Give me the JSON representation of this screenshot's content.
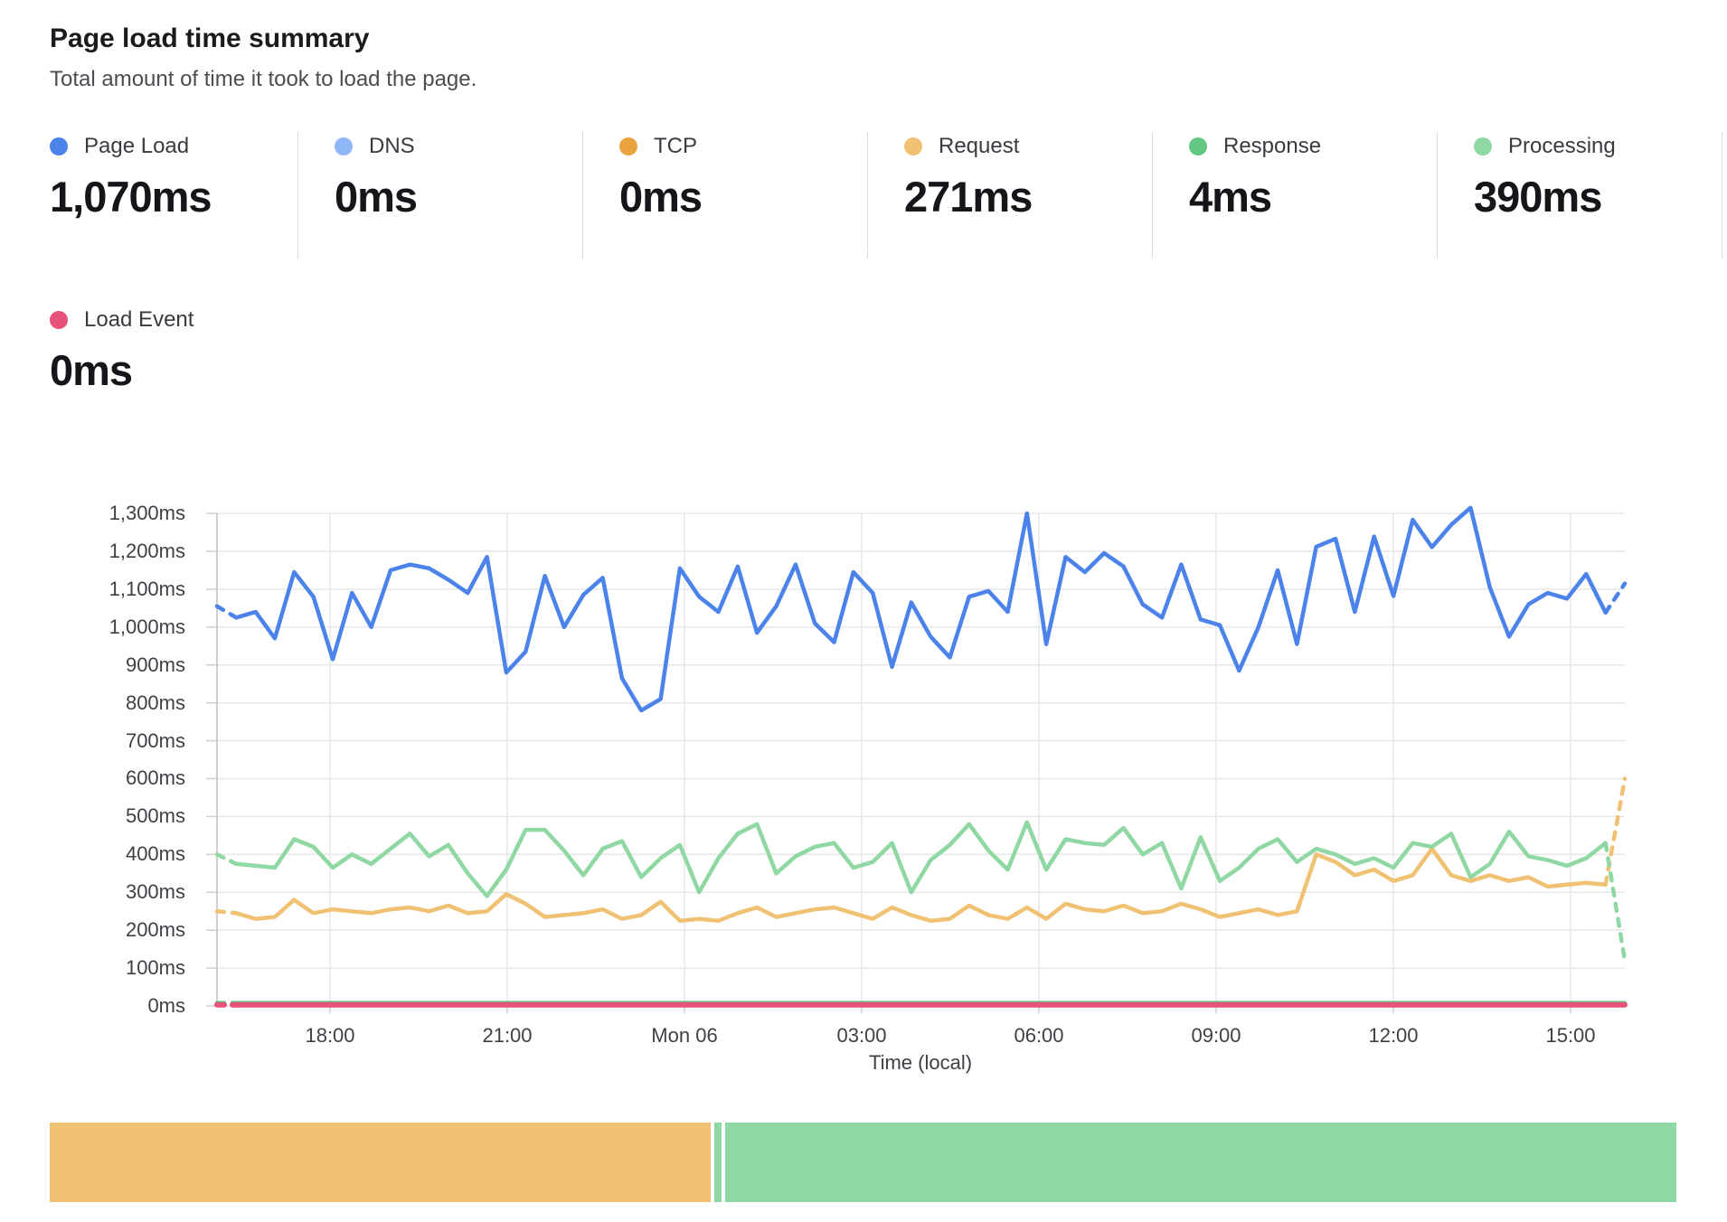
{
  "header": {
    "title": "Page load time summary",
    "subtitle": "Total amount of time it took to load the page."
  },
  "metrics": [
    {
      "label": "Page Load",
      "value": "1,070ms",
      "color": "#4b83ea"
    },
    {
      "label": "DNS",
      "value": "0ms",
      "color": "#8fb6f7"
    },
    {
      "label": "TCP",
      "value": "0ms",
      "color": "#eba33f"
    },
    {
      "label": "Request",
      "value": "271ms",
      "color": "#f1c173"
    },
    {
      "label": "Response",
      "value": "4ms",
      "color": "#63c784"
    },
    {
      "label": "Processing",
      "value": "390ms",
      "color": "#8fd7a3"
    }
  ],
  "load_event_metric": {
    "label": "Load Event",
    "value": "0ms",
    "color": "#e85179"
  },
  "chart_data": {
    "type": "line",
    "title": "Page load time summary",
    "xlabel": "Time (local)",
    "ylabel": "",
    "ylim": [
      0,
      1300
    ],
    "grid": true,
    "legend_position": "top-metrics",
    "x_ticks": [
      "18:00",
      "21:00",
      "Mon 06",
      "03:00",
      "06:00",
      "09:00",
      "12:00",
      "15:00"
    ],
    "y_ticks": [
      "0ms",
      "100ms",
      "200ms",
      "300ms",
      "400ms",
      "500ms",
      "600ms",
      "700ms",
      "800ms",
      "900ms",
      "1,000ms",
      "1,100ms",
      "1,200ms",
      "1,300ms"
    ],
    "x_range": "24 hours (≈16:00 to 16:00 next day), ticks every 3h",
    "series": [
      {
        "name": "Request",
        "color": "#f1c173",
        "dash_first": true,
        "dash_last": true,
        "values": [
          250,
          245,
          230,
          235,
          280,
          245,
          255,
          250,
          245,
          255,
          260,
          250,
          265,
          245,
          250,
          295,
          270,
          235,
          240,
          245,
          255,
          230,
          240,
          275,
          225,
          230,
          225,
          245,
          260,
          235,
          245,
          255,
          260,
          245,
          230,
          260,
          240,
          225,
          230,
          265,
          240,
          230,
          260,
          230,
          270,
          255,
          250,
          265,
          245,
          250,
          270,
          255,
          235,
          245,
          255,
          240,
          250,
          400,
          380,
          345,
          360,
          330,
          345,
          415,
          345,
          330,
          345,
          330,
          340,
          315,
          320,
          325,
          320,
          600
        ]
      },
      {
        "name": "Processing",
        "color": "#8fd7a3",
        "dash_first": true,
        "dash_last": true,
        "values": [
          400,
          375,
          370,
          365,
          440,
          420,
          365,
          400,
          375,
          415,
          455,
          395,
          425,
          350,
          290,
          360,
          465,
          465,
          410,
          345,
          415,
          435,
          340,
          390,
          425,
          300,
          390,
          455,
          480,
          350,
          395,
          420,
          430,
          365,
          380,
          430,
          300,
          385,
          425,
          480,
          410,
          360,
          485,
          360,
          440,
          430,
          425,
          470,
          400,
          430,
          310,
          445,
          330,
          365,
          415,
          440,
          380,
          415,
          400,
          375,
          390,
          365,
          430,
          420,
          455,
          340,
          375,
          460,
          395,
          385,
          370,
          390,
          430,
          120
        ]
      },
      {
        "name": "Page Load",
        "color": "#4b83ea",
        "dash_first": true,
        "dash_last": true,
        "values": [
          1055,
          1025,
          1040,
          970,
          1145,
          1080,
          915,
          1090,
          1000,
          1150,
          1165,
          1155,
          1125,
          1090,
          1185,
          880,
          935,
          1135,
          1000,
          1085,
          1130,
          865,
          780,
          810,
          1155,
          1080,
          1040,
          1160,
          985,
          1055,
          1165,
          1010,
          960,
          1145,
          1090,
          895,
          1065,
          975,
          920,
          1080,
          1095,
          1040,
          1300,
          955,
          1185,
          1145,
          1195,
          1160,
          1060,
          1025,
          1165,
          1020,
          1005,
          885,
          1000,
          1150,
          955,
          1212,
          1233,
          1040,
          1239,
          1082,
          1283,
          1211,
          1270,
          1315,
          1105,
          975,
          1060,
          1090,
          1075,
          1140,
          1038,
          1115
        ]
      },
      {
        "name": "Response",
        "color": "#63c784",
        "dash_first": true,
        "dash_last": false,
        "flat": 8
      },
      {
        "name": "Load Event",
        "color": "#e85179",
        "dash_first": true,
        "dash_last": false,
        "flat": 3
      },
      {
        "name": "DNS",
        "color": "#8fb6f7",
        "hidden_at_zero": true,
        "flat": 0
      },
      {
        "name": "TCP",
        "color": "#eba33f",
        "hidden_at_zero": true,
        "flat": 0
      }
    ]
  },
  "footer_bar": {
    "segments": [
      {
        "name": "Request",
        "color": "#f1c173",
        "pct": 40.8
      },
      {
        "name": "Response",
        "color": "#8fd7a3",
        "pct": 0.6
      },
      {
        "name": "Processing",
        "color": "#8fd7a3",
        "pct": 58.6
      }
    ]
  },
  "style": {
    "grid_color": "#e7e7e7",
    "axis_color": "#cfcfcf",
    "text_color": "#3f3f46"
  }
}
